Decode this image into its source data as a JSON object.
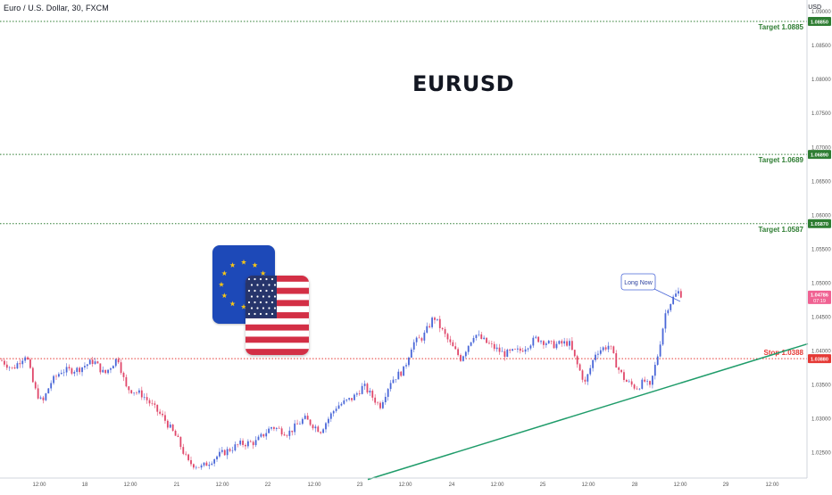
{
  "header": {
    "symbol_title": "Euro / U.S. Dollar, 30, FXCM",
    "chart_title": "EURUSD",
    "axis_unit": "USD"
  },
  "colors": {
    "up": "#26a69a",
    "down": "#ef5350",
    "candle_up": "#4a67d8",
    "candle_down": "#e0476a",
    "target_line": "#2e7d32",
    "stop_line": "#e53935",
    "trend_line": "#1f9c6a",
    "price_badge": "#f06292",
    "eu_blue": "#1d49b8",
    "eu_star": "#f5c518",
    "us_red": "#d32f45",
    "us_blue": "#27356b"
  },
  "icons": {
    "eu_flag": "eu-flag-icon",
    "us_flag": "us-flag-icon"
  },
  "chart_data": {
    "type": "candlestick",
    "symbol": "EURUSD",
    "timeframe": "30",
    "ylim": [
      1.022,
      1.091
    ],
    "y_ticks": [
      "1.09000",
      "1.08500",
      "1.08000",
      "1.07500",
      "1.07000",
      "1.06500",
      "1.06000",
      "1.05500",
      "1.05000",
      "1.04500",
      "1.04000",
      "1.03500",
      "1.03000",
      "1.02500"
    ],
    "x_ticks": [
      "12:00",
      "18",
      "12:00",
      "21",
      "12:00",
      "22",
      "12:00",
      "23",
      "12:00",
      "24",
      "12:00",
      "25",
      "12:00",
      "28",
      "12:00",
      "29",
      "12:00"
    ],
    "levels": [
      {
        "label": "Target 1.0885",
        "value": 1.0885,
        "badge": "1.08850",
        "kind": "target"
      },
      {
        "label": "Target 1.0689",
        "value": 1.0689,
        "badge": "1.06890",
        "kind": "target"
      },
      {
        "label": "Target 1.0587",
        "value": 1.0587,
        "badge": "1.05870",
        "kind": "target"
      },
      {
        "label": "Stop 1.0388",
        "value": 1.0388,
        "badge": "1.03880",
        "kind": "stop"
      }
    ],
    "current_price": {
      "value": 1.0479,
      "badge": "1.04786",
      "countdown": "07:19"
    },
    "callout": "Long Now",
    "trendline": {
      "from": {
        "x": "23 00:00",
        "y": 1.021
      },
      "to": {
        "x": "29 12:00",
        "y": 1.041
      }
    },
    "price_path_keypoints": [
      [
        0,
        1.0385
      ],
      [
        0.02,
        1.0373
      ],
      [
        0.045,
        1.0395
      ],
      [
        0.06,
        1.0345
      ],
      [
        0.075,
        1.0322
      ],
      [
        0.09,
        1.0352
      ],
      [
        0.11,
        1.037
      ],
      [
        0.14,
        1.0372
      ],
      [
        0.17,
        1.0385
      ],
      [
        0.19,
        1.0365
      ],
      [
        0.215,
        1.039
      ],
      [
        0.23,
        1.0345
      ],
      [
        0.26,
        1.0335
      ],
      [
        0.3,
        1.03
      ],
      [
        0.325,
        1.027
      ],
      [
        0.345,
        1.0235
      ],
      [
        0.37,
        1.0228
      ],
      [
        0.4,
        1.0245
      ],
      [
        0.44,
        1.0262
      ],
      [
        0.47,
        1.0265
      ],
      [
        0.5,
        1.0288
      ],
      [
        0.53,
        1.0278
      ],
      [
        0.56,
        1.03
      ],
      [
        0.59,
        1.0282
      ],
      [
        0.62,
        1.0318
      ],
      [
        0.65,
        1.033
      ],
      [
        0.67,
        1.0348
      ],
      [
        0.7,
        1.0318
      ],
      [
        0.72,
        1.0355
      ],
      [
        0.745,
        1.0372
      ],
      [
        0.76,
        1.041
      ],
      [
        0.78,
        1.042
      ],
      [
        0.8,
        1.045
      ],
      [
        0.815,
        1.043
      ],
      [
        0.83,
        1.041
      ],
      [
        0.85,
        1.0388
      ],
      [
        0.875,
        1.0425
      ],
      [
        0.9,
        1.041
      ],
      [
        0.93,
        1.0395
      ],
      [
        0.96,
        1.04
      ],
      [
        0.99,
        1.0418
      ],
      [
        1.02,
        1.0408
      ],
      [
        1.05,
        1.0412
      ],
      [
        1.065,
        1.038
      ],
      [
        1.08,
        1.0352
      ],
      [
        1.1,
        1.0398
      ],
      [
        1.125,
        1.0408
      ],
      [
        1.14,
        1.0375
      ],
      [
        1.155,
        1.0355
      ],
      [
        1.175,
        1.0345
      ],
      [
        1.19,
        1.0355
      ],
      [
        1.2,
        1.0345
      ],
      [
        1.215,
        1.0395
      ],
      [
        1.23,
        1.046
      ],
      [
        1.245,
        1.048
      ],
      [
        1.255,
        1.0488
      ],
      [
        1.26,
        1.0479
      ]
    ]
  }
}
